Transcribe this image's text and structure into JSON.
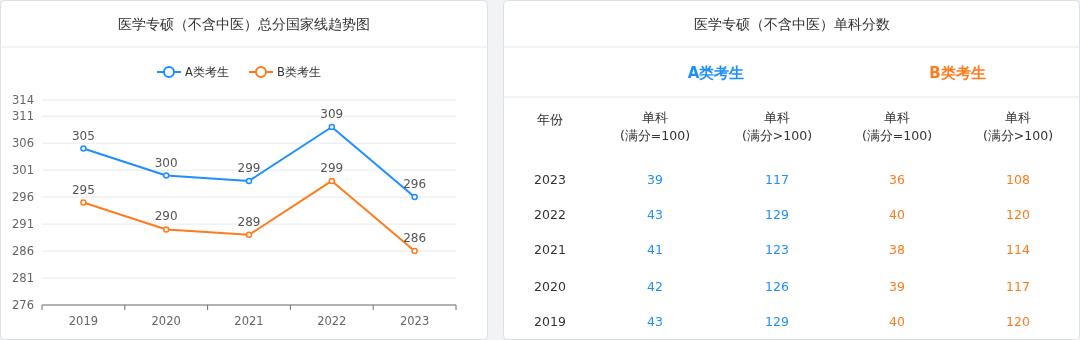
{
  "chart_data": [
    {
      "type": "line",
      "title": "医学专硕（不含中医）总分国家线趋势图",
      "categories": [
        "2019",
        "2020",
        "2021",
        "2022",
        "2023"
      ],
      "series": [
        {
          "name": "A类考生",
          "color": "#1e8fff",
          "values": [
            305,
            300,
            299,
            309,
            296
          ]
        },
        {
          "name": "B类考生",
          "color": "#ff7b1c",
          "values": [
            295,
            290,
            289,
            299,
            286
          ]
        }
      ],
      "ylim": [
        276,
        314
      ],
      "yticks": [
        276,
        281,
        286,
        291,
        296,
        301,
        306,
        311,
        314
      ],
      "grid": "y",
      "legend": "top",
      "marker": "circle",
      "data_labels": true
    },
    {
      "type": "heatmap",
      "title": "医学专硕（不含中医）单科分数",
      "ylabel": "年份",
      "categories": [
        "单科(满分=100)",
        "单科(满分>100)",
        "单科(满分=100)",
        "单科(满分>100)"
      ],
      "y_categories": [
        "2023",
        "2022",
        "2021",
        "2020",
        "2019"
      ],
      "annotations": [
        "A类考生",
        "B类考生"
      ],
      "colors": [
        "#1e8fff",
        "#1e8fff",
        "#ff7b1c",
        "#ff7b1c"
      ],
      "cells": [
        [
          39,
          117,
          36,
          108
        ],
        [
          43,
          129,
          40,
          120
        ],
        [
          41,
          123,
          38,
          114
        ],
        [
          42,
          126,
          39,
          117
        ],
        [
          43,
          129,
          40,
          120
        ]
      ],
      "data_labels": true
    }
  ]
}
